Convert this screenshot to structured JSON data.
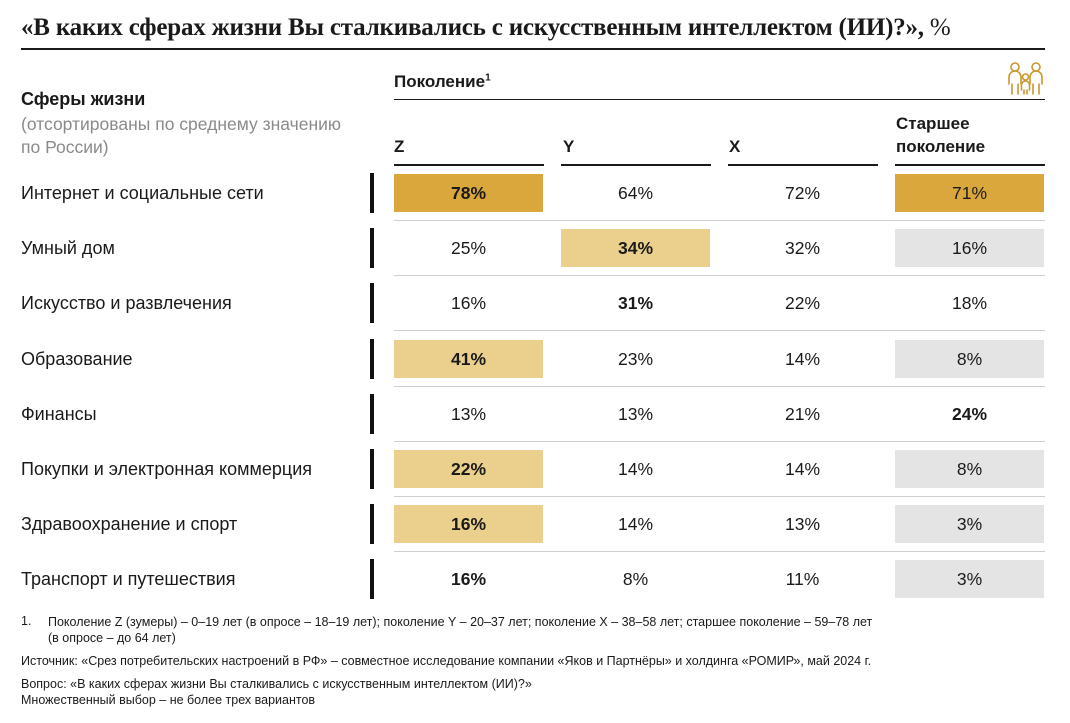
{
  "title": "«В каких сферах жизни Вы сталкивались с искусственным интеллектом (ИИ)?»,",
  "title_unit": "%",
  "generation_label": "Поколение",
  "generation_footnote_mark": "1",
  "sphere_header": "Сферы жизни",
  "sphere_subheader": "(отсортированы по среднему значению по России)",
  "columns": [
    {
      "label": "Z"
    },
    {
      "label": "Y"
    },
    {
      "label": "X"
    },
    {
      "label": "Старшее поколение"
    }
  ],
  "colors": {
    "highlight_dark": "#D9A73C",
    "highlight_light": "#EBCF8D",
    "gray": "#E4E4E4"
  },
  "chart_data": {
    "type": "table",
    "title": "«В каких сферах жизни Вы сталкивались с искусственным интеллектом (ИИ)?», %",
    "unit": "%",
    "columns": [
      "Z",
      "Y",
      "X",
      "Старшее поколение"
    ],
    "rows": [
      {
        "label": "Интернет и социальные сети",
        "values": [
          78,
          64,
          72,
          71
        ],
        "display": [
          "78%",
          "64%",
          "72%",
          "71%"
        ],
        "bold": [
          true,
          false,
          false,
          false
        ],
        "fill": [
          "dark",
          null,
          null,
          "dark"
        ]
      },
      {
        "label": "Умный дом",
        "values": [
          25,
          34,
          32,
          16
        ],
        "display": [
          "25%",
          "34%",
          "32%",
          "16%"
        ],
        "bold": [
          false,
          true,
          false,
          false
        ],
        "fill": [
          null,
          "light",
          null,
          "gray"
        ]
      },
      {
        "label": "Искусство и развлечения",
        "values": [
          16,
          31,
          22,
          18
        ],
        "display": [
          "16%",
          "31%",
          "22%",
          "18%"
        ],
        "bold": [
          false,
          true,
          false,
          false
        ],
        "fill": [
          null,
          null,
          null,
          null
        ]
      },
      {
        "label": "Образование",
        "values": [
          41,
          23,
          14,
          8
        ],
        "display": [
          "41%",
          "23%",
          "14%",
          "8%"
        ],
        "bold": [
          true,
          false,
          false,
          false
        ],
        "fill": [
          "light",
          null,
          null,
          "gray"
        ]
      },
      {
        "label": "Финансы",
        "values": [
          13,
          13,
          21,
          24
        ],
        "display": [
          "13%",
          "13%",
          "21%",
          "24%"
        ],
        "bold": [
          false,
          false,
          false,
          true
        ],
        "fill": [
          null,
          null,
          null,
          null
        ]
      },
      {
        "label": "Покупки и электронная коммерция",
        "values": [
          22,
          14,
          14,
          8
        ],
        "display": [
          "22%",
          "14%",
          "14%",
          "8%"
        ],
        "bold": [
          true,
          false,
          false,
          false
        ],
        "fill": [
          "light",
          null,
          null,
          "gray"
        ]
      },
      {
        "label": "Здравоохранение и спорт",
        "values": [
          16,
          14,
          13,
          3
        ],
        "display": [
          "16%",
          "14%",
          "13%",
          "3%"
        ],
        "bold": [
          true,
          false,
          false,
          false
        ],
        "fill": [
          "light",
          null,
          null,
          "gray"
        ]
      },
      {
        "label": "Транспорт и путешествия",
        "values": [
          16,
          8,
          11,
          3
        ],
        "display": [
          "16%",
          "8%",
          "11%",
          "3%"
        ],
        "bold": [
          true,
          false,
          false,
          false
        ],
        "fill": [
          null,
          null,
          null,
          "gray"
        ]
      }
    ]
  },
  "footnotes": {
    "note1_number": "1.",
    "note1_line1": "Поколение Z (зумеры) – 0–19 лет (в опросе – 18–19 лет); поколение Y – 20–37 лет; поколение X – 38–58 лет; старшее поколение – 59–78 лет",
    "note1_line2": "(в опросе – до 64 лет)",
    "source": "Источник: «Срез потребительских настроений в РФ» – совместное исследование компании «Яков и Партнёры» и холдинга «РОМИР», май 2024 г.",
    "question": "Вопрос: «В каких сферах жизни Вы сталкивались с искусственным интеллектом (ИИ)?»",
    "multiple_choice": "Множественный выбор – не более трех вариантов"
  },
  "icons": {
    "generation_icon": "family-icon"
  }
}
